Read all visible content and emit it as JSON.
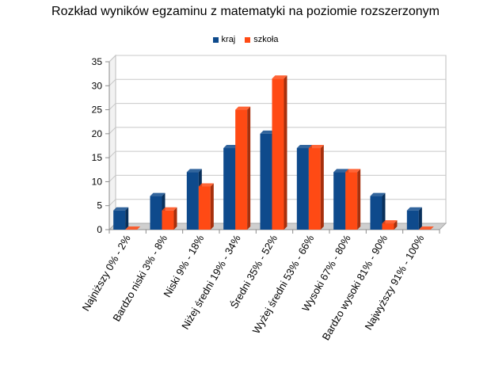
{
  "chart_data": {
    "type": "bar",
    "title": "Rozkład wyników egzaminu z matematyki na poziomie rozszerzonym",
    "categories": [
      "Najniższy 0% - 2%",
      "Bardzo niski 3% - 8%",
      "Niski 9% - 18%",
      "Niżej średni 19% - 34%",
      "Średni 35% - 52%",
      "Wyżej średni 53% - 66%",
      "Wysoki 67% - 80%",
      "Bardzo wysoki 81% - 90%",
      "Najwyższy 91% - 100%"
    ],
    "series": [
      {
        "name": "kraj",
        "color": "#0E4A8C",
        "values": [
          4,
          7,
          12,
          17,
          20,
          17,
          12,
          7,
          4
        ]
      },
      {
        "name": "szkoła",
        "color": "#FF4A14",
        "values": [
          0,
          4,
          9,
          25,
          31.5,
          17,
          12,
          1.3,
          0
        ]
      }
    ],
    "ylim": [
      0,
      35
    ],
    "yticks": [
      0,
      5,
      10,
      15,
      20,
      25,
      30,
      35
    ],
    "xlabel": "",
    "ylabel": "",
    "grid": true,
    "legend_position": "top"
  }
}
